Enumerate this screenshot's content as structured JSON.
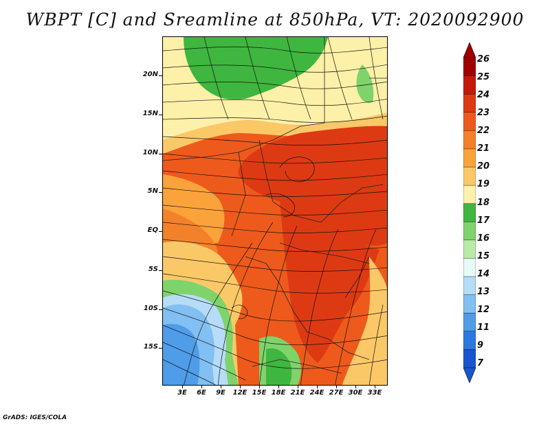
{
  "title": "WBPT [C] and Sreamline at 850hPa, VT: 2020092900",
  "credit": "GrADS: IGES/COLA",
  "lat_labels": [
    "20N",
    "15N",
    "10N",
    "5N",
    "EQ",
    "5S",
    "10S",
    "15S"
  ],
  "lon_labels": [
    "3E",
    "6E",
    "9E",
    "12E",
    "15E",
    "18E",
    "21E",
    "24E",
    "27E",
    "30E",
    "33E"
  ],
  "colorbar": {
    "labels": [
      "26",
      "25",
      "24",
      "23",
      "22",
      "21",
      "20",
      "19",
      "18",
      "17",
      "16",
      "15",
      "14",
      "13",
      "12",
      "11",
      "9",
      "7"
    ],
    "colors": [
      "#a00000",
      "#c41a0b",
      "#dd3a14",
      "#ee5a1c",
      "#f3812a",
      "#f9a33a",
      "#fbc868",
      "#fdf0a8",
      "#3fb63f",
      "#7fd36b",
      "#b7eba7",
      "#e6fbf8",
      "#b6dcf8",
      "#82bff2",
      "#4f9ce8",
      "#2b78e0",
      "#1a55d0"
    ]
  },
  "map_colors": {
    "green": "#3fb63f",
    "light_green": "#7fd36b",
    "pale": "#fdf0a8",
    "tan": "#fbc868",
    "orange": "#f9a33a",
    "dark_orange": "#f3812a",
    "red_orange": "#ee5a1c",
    "red": "#dd3a14",
    "blue": "#4f9ce8",
    "light_blue": "#82bff2",
    "sky": "#b6dcf8"
  }
}
